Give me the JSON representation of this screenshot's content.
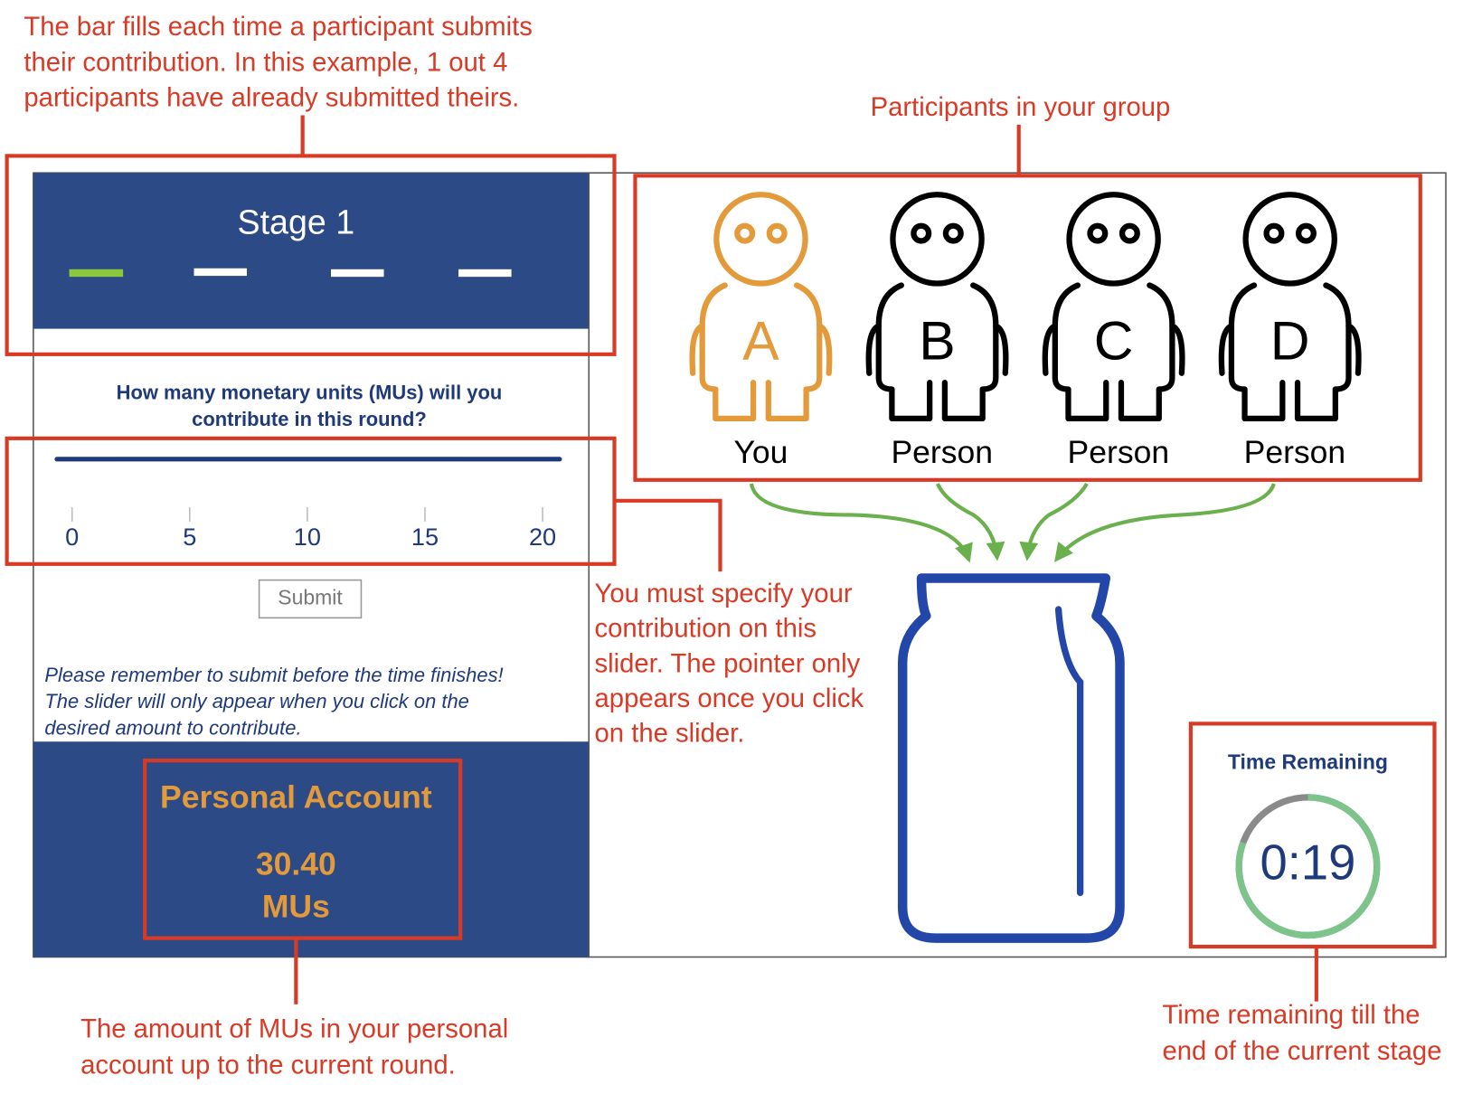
{
  "annotations": {
    "submission_bar": [
      "The bar fills each time a participant submits",
      "their contribution. In this example, 1 out 4",
      "participants have already submitted theirs."
    ],
    "participants": [
      "Participants in your group"
    ],
    "slider": [
      "You must specify your",
      "contribution on this",
      "slider. The pointer only",
      "appears once you click",
      "on the slider."
    ],
    "personal_account": [
      "The amount of MUs in your personal",
      "account up to the current round."
    ],
    "time_remaining": [
      "Time remaining till the",
      "end of the current stage"
    ]
  },
  "stage": {
    "title": "Stage 1"
  },
  "question": [
    "How many monetary units (MUs) will you",
    "contribute in this round?"
  ],
  "slider": {
    "ticks": [
      0,
      5,
      10,
      15,
      20
    ]
  },
  "submit_button": "Submit",
  "reminder": [
    "Please remember to submit before the time finishes!",
    "The slider will only appear when you click on the",
    "desired amount to contribute."
  ],
  "personal_account": {
    "title": "Personal Account",
    "amount": "30.40",
    "unit": "MUs"
  },
  "participants": [
    {
      "letter": "A",
      "label": "You",
      "color": "#e39a3b"
    },
    {
      "letter": "B",
      "label": "Person",
      "color": "#000000"
    },
    {
      "letter": "C",
      "label": "Person",
      "color": "#000000"
    },
    {
      "letter": "D",
      "label": "Person",
      "color": "#000000"
    }
  ],
  "timer": {
    "title": "Time Remaining",
    "time": "0:19"
  }
}
